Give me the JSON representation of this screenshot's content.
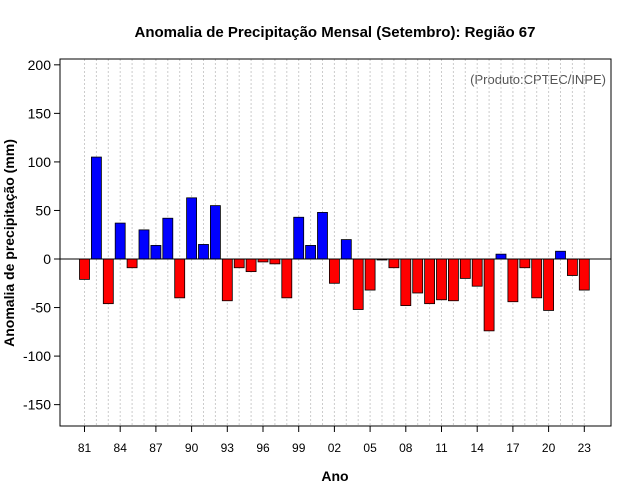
{
  "chart_data": {
    "type": "bar",
    "title": "Anomalia de Precipitação Mensal (Setembro): Região 67",
    "xlabel": "Ano",
    "ylabel": "Anomalia de precipitação (mm)",
    "annotation": "(Produto:CPTEC/INPE)",
    "ylim": [
      -172,
      206
    ],
    "yticks": [
      200,
      150,
      100,
      50,
      0,
      -50,
      -100,
      -150
    ],
    "xtick_labels": [
      "81",
      "84",
      "87",
      "90",
      "93",
      "96",
      "99",
      "02",
      "05",
      "08",
      "11",
      "14",
      "17",
      "20",
      "23"
    ],
    "categories": [
      "1981",
      "1982",
      "1983",
      "1984",
      "1985",
      "1986",
      "1987",
      "1988",
      "1989",
      "1990",
      "1991",
      "1992",
      "1993",
      "1994",
      "1995",
      "1996",
      "1997",
      "1998",
      "1999",
      "2000",
      "2001",
      "2002",
      "2003",
      "2004",
      "2005",
      "2006",
      "2007",
      "2008",
      "2009",
      "2010",
      "2011",
      "2012",
      "2013",
      "2014",
      "2015",
      "2016",
      "2017",
      "2018",
      "2019",
      "2020",
      "2021",
      "2022",
      "2023"
    ],
    "values": [
      -21,
      105,
      -46,
      37,
      -9,
      30,
      14,
      42,
      -40,
      63,
      15,
      55,
      -43,
      -9,
      -13,
      -3,
      -5,
      -40,
      43,
      14,
      48,
      -25,
      20,
      -52,
      -32,
      -1,
      -9,
      -48,
      -35,
      -46,
      -42,
      -43,
      -20,
      -28,
      -74,
      5,
      -44,
      -9,
      -40,
      -53,
      8,
      -17,
      -32
    ],
    "grid": "vertical dotted",
    "colors": {
      "positive": "#0000ff",
      "negative": "#ff0000",
      "grid": "#cccccc",
      "zero_line": "#000000"
    }
  }
}
